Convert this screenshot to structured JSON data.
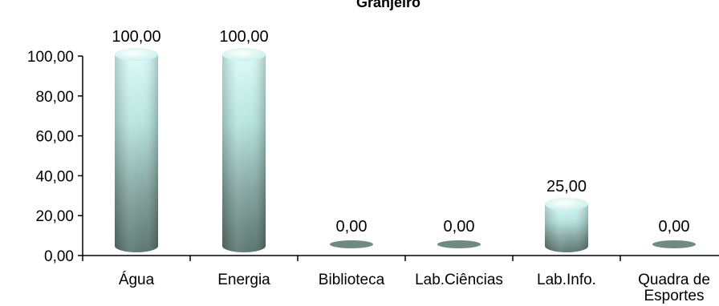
{
  "chart_data": {
    "type": "bar",
    "title": "Granjeiro",
    "categories": [
      "Água",
      "Energia",
      "Biblioteca",
      "Lab.Ciências",
      "Lab.Info.",
      "Quadra de Esportes"
    ],
    "category_lines": [
      [
        "Água"
      ],
      [
        "Energia"
      ],
      [
        "Biblioteca"
      ],
      [
        "Lab.Ciências"
      ],
      [
        "Lab.Info."
      ],
      [
        "Quadra de",
        "Esportes"
      ]
    ],
    "values": [
      100,
      100,
      0,
      0,
      25,
      0
    ],
    "data_labels": [
      "100,00",
      "100,00",
      "0,00",
      "0,00",
      "25,00",
      "0,00"
    ],
    "yticks": [
      "0,00",
      "20,00",
      "40,00",
      "60,00",
      "80,00",
      "100,00"
    ],
    "ylim": [
      0,
      100
    ],
    "xlabel": "",
    "ylabel": "",
    "bar_shape": "cylinder",
    "bar_color": "#c8f5f0",
    "bar_shadow_color": "#6f8a84",
    "grid": false,
    "legend": "none"
  }
}
